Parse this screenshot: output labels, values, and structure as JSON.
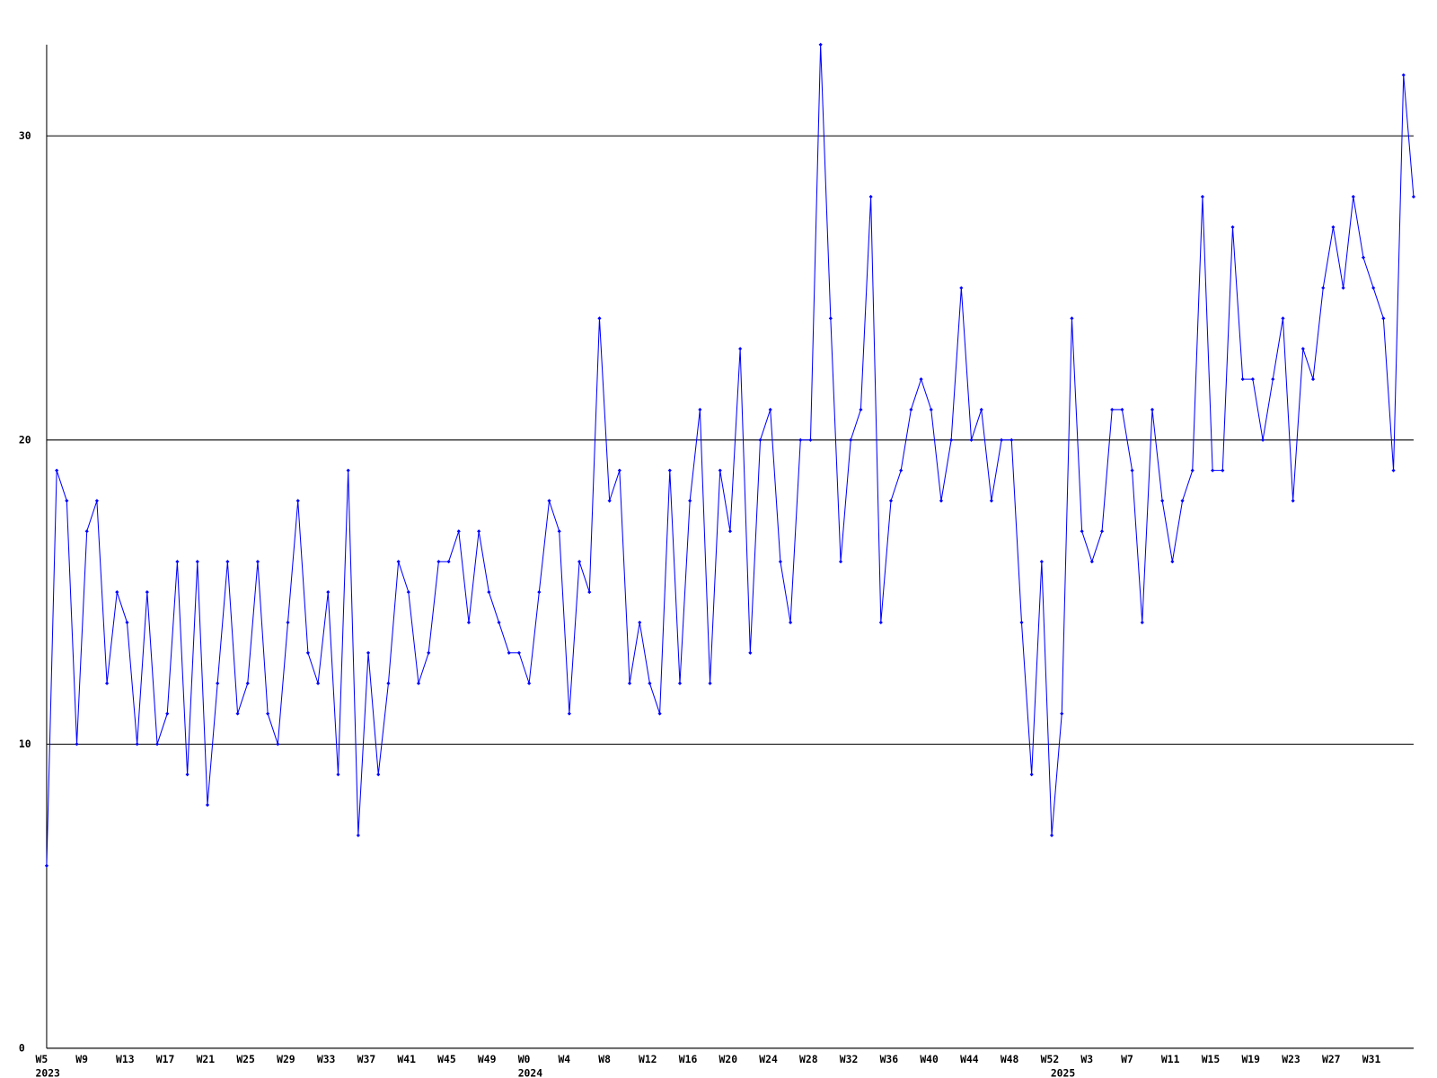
{
  "chart_data": {
    "type": "line",
    "categories": [
      "W5",
      null,
      null,
      null,
      "W9",
      null,
      null,
      null,
      "W13",
      null,
      null,
      null,
      "W17",
      null,
      null,
      null,
      "W21",
      null,
      null,
      null,
      "W25",
      null,
      null,
      null,
      "W29",
      null,
      null,
      null,
      "W33",
      null,
      null,
      null,
      "W37",
      null,
      null,
      null,
      "W41",
      null,
      null,
      null,
      "W45",
      null,
      null,
      null,
      "W49",
      null,
      null,
      null,
      "W0",
      null,
      null,
      null,
      "W4",
      null,
      null,
      null,
      "W8",
      null,
      null,
      null,
      "W12",
      null,
      null,
      null,
      "W16",
      null,
      null,
      null,
      "W20",
      null,
      null,
      null,
      "W24",
      null,
      null,
      null,
      "W28",
      null,
      null,
      null,
      "W32",
      null,
      null,
      null,
      "W36",
      null,
      null,
      null,
      "W40",
      null,
      null,
      null,
      "W44",
      null,
      null,
      null,
      "W48",
      null,
      null,
      null,
      "W52",
      null,
      null,
      null,
      "W3",
      null,
      null,
      null,
      "W7",
      null,
      null,
      null,
      "W11",
      null,
      null,
      null,
      "W15",
      null,
      null,
      null,
      "W19",
      null,
      null,
      null,
      "W23",
      null,
      null,
      null,
      "W27",
      null,
      null,
      null,
      "W31",
      null,
      null,
      null,
      null
    ],
    "year_labels": [
      "2023",
      null,
      null,
      null,
      null,
      null,
      null,
      null,
      null,
      null,
      null,
      null,
      null,
      null,
      null,
      null,
      null,
      null,
      null,
      null,
      null,
      null,
      null,
      null,
      null,
      null,
      null,
      null,
      null,
      null,
      null,
      null,
      null,
      null,
      null,
      null,
      null,
      null,
      null,
      null,
      null,
      null,
      null,
      null,
      null,
      null,
      null,
      null,
      "2024",
      null,
      null,
      null,
      null,
      null,
      null,
      null,
      null,
      null,
      null,
      null,
      null,
      null,
      null,
      null,
      null,
      null,
      null,
      null,
      null,
      null,
      null,
      null,
      null,
      null,
      null,
      null,
      null,
      null,
      null,
      null,
      null,
      null,
      null,
      null,
      null,
      null,
      null,
      null,
      null,
      null,
      null,
      null,
      null,
      null,
      null,
      null,
      null,
      null,
      null,
      null,
      null,
      "2025",
      null,
      null,
      null,
      null,
      null,
      null,
      null,
      null,
      null,
      null,
      null,
      null,
      null,
      null,
      null,
      null,
      null,
      null,
      null,
      null,
      null,
      null,
      null,
      null,
      null,
      null,
      null,
      null,
      null,
      null,
      null,
      null,
      null,
      null,
      null
    ],
    "values": [
      6,
      19,
      18,
      10,
      17,
      18,
      12,
      15,
      14,
      10,
      15,
      10,
      11,
      16,
      9,
      16,
      8,
      12,
      16,
      11,
      12,
      16,
      11,
      10,
      14,
      18,
      13,
      12,
      15,
      9,
      19,
      7,
      13,
      9,
      12,
      16,
      15,
      12,
      13,
      16,
      16,
      17,
      14,
      17,
      15,
      14,
      13,
      13,
      12,
      15,
      18,
      17,
      11,
      16,
      15,
      24,
      18,
      19,
      12,
      14,
      12,
      11,
      19,
      12,
      18,
      21,
      12,
      19,
      17,
      23,
      13,
      20,
      21,
      16,
      14,
      20,
      20,
      33,
      24,
      16,
      20,
      21,
      28,
      14,
      18,
      19,
      21,
      22,
      21,
      18,
      20,
      25,
      20,
      21,
      18,
      20,
      20,
      14,
      9,
      16,
      7,
      11,
      24,
      17,
      16,
      17,
      21,
      21,
      19,
      14,
      21,
      18,
      16,
      18,
      19,
      28,
      19,
      19,
      27,
      22,
      22,
      20,
      22,
      24,
      18,
      23,
      22,
      25,
      27,
      25,
      28,
      26,
      25,
      24,
      19,
      32,
      28
    ],
    "color": "#0000ff",
    "ylim": [
      0,
      33
    ],
    "yticks": [
      0,
      10,
      20,
      30
    ],
    "grid": true
  }
}
